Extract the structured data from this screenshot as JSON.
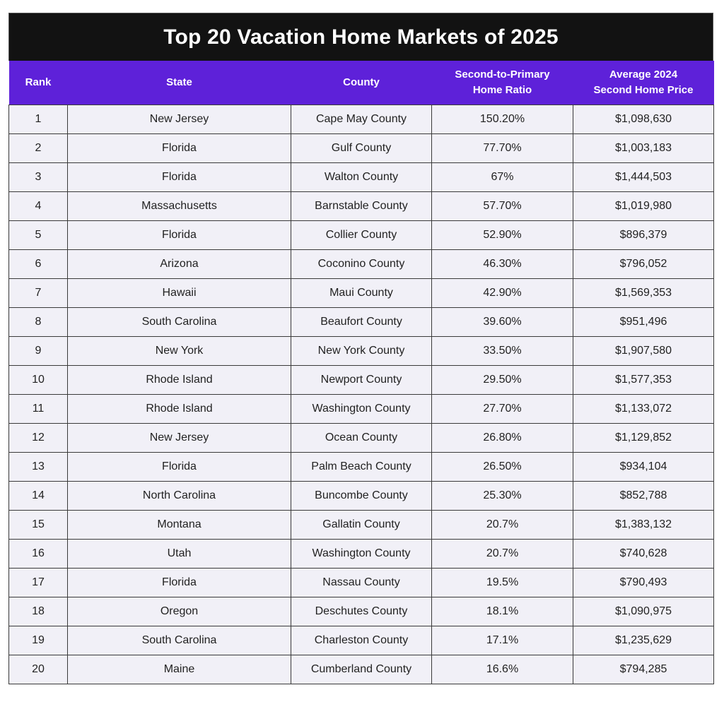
{
  "title": "Top 20 Vacation Home Markets of 2025",
  "colors": {
    "title_bg": "#121212",
    "header_bg": "#5e21d9",
    "row_bg": "#f1f0f7",
    "border": "#3a3a3a"
  },
  "columns": [
    "Rank",
    "State",
    "County",
    "Second-to-Primary Home Ratio",
    "Average 2024 Second Home Price"
  ],
  "header": {
    "rank": "Rank",
    "state": "State",
    "county": "County",
    "ratio_line1": "Second-to-Primary",
    "ratio_line2": "Home Ratio",
    "price_line1": "Average 2024",
    "price_line2": "Second Home Price"
  },
  "rows": [
    {
      "rank": "1",
      "state": "New Jersey",
      "county": "Cape May County",
      "ratio": "150.20%",
      "price": "$1,098,630"
    },
    {
      "rank": "2",
      "state": "Florida",
      "county": "Gulf County",
      "ratio": "77.70%",
      "price": "$1,003,183"
    },
    {
      "rank": "3",
      "state": "Florida",
      "county": "Walton County",
      "ratio": "67%",
      "price": "$1,444,503"
    },
    {
      "rank": "4",
      "state": "Massachusetts",
      "county": "Barnstable County",
      "ratio": "57.70%",
      "price": "$1,019,980"
    },
    {
      "rank": "5",
      "state": "Florida",
      "county": "Collier County",
      "ratio": "52.90%",
      "price": "$896,379"
    },
    {
      "rank": "6",
      "state": "Arizona",
      "county": "Coconino County",
      "ratio": "46.30%",
      "price": "$796,052"
    },
    {
      "rank": "7",
      "state": "Hawaii",
      "county": "Maui County",
      "ratio": "42.90%",
      "price": "$1,569,353"
    },
    {
      "rank": "8",
      "state": "South Carolina",
      "county": "Beaufort County",
      "ratio": "39.60%",
      "price": "$951,496"
    },
    {
      "rank": "9",
      "state": "New York",
      "county": "New York County",
      "ratio": "33.50%",
      "price": "$1,907,580"
    },
    {
      "rank": "10",
      "state": "Rhode Island",
      "county": "Newport County",
      "ratio": "29.50%",
      "price": "$1,577,353"
    },
    {
      "rank": "11",
      "state": "Rhode Island",
      "county": "Washington County",
      "ratio": "27.70%",
      "price": "$1,133,072"
    },
    {
      "rank": "12",
      "state": "New Jersey",
      "county": "Ocean County",
      "ratio": "26.80%",
      "price": "$1,129,852"
    },
    {
      "rank": "13",
      "state": "Florida",
      "county": "Palm Beach County",
      "ratio": "26.50%",
      "price": "$934,104"
    },
    {
      "rank": "14",
      "state": "North Carolina",
      "county": "Buncombe County",
      "ratio": "25.30%",
      "price": "$852,788"
    },
    {
      "rank": "15",
      "state": "Montana",
      "county": "Gallatin County",
      "ratio": "20.7%",
      "price": "$1,383,132"
    },
    {
      "rank": "16",
      "state": "Utah",
      "county": "Washington County",
      "ratio": "20.7%",
      "price": "$740,628"
    },
    {
      "rank": "17",
      "state": "Florida",
      "county": "Nassau County",
      "ratio": "19.5%",
      "price": "$790,493"
    },
    {
      "rank": "18",
      "state": "Oregon",
      "county": "Deschutes County",
      "ratio": "18.1%",
      "price": "$1,090,975"
    },
    {
      "rank": "19",
      "state": "South Carolina",
      "county": "Charleston County",
      "ratio": "17.1%",
      "price": "$1,235,629"
    },
    {
      "rank": "20",
      "state": "Maine",
      "county": "Cumberland County",
      "ratio": "16.6%",
      "price": "$794,285"
    }
  ]
}
